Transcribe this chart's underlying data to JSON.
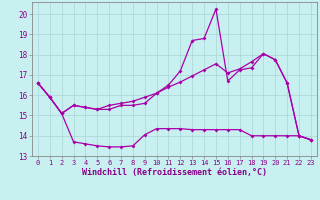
{
  "xlabel": "Windchill (Refroidissement éolien,°C)",
  "background_color": "#c8f0f0",
  "grid_color": "#b0dada",
  "line_color": "#aa00aa",
  "xlim": [
    -0.5,
    23.5
  ],
  "ylim": [
    13,
    20.6
  ],
  "yticks": [
    13,
    14,
    15,
    16,
    17,
    18,
    19,
    20
  ],
  "xticks": [
    0,
    1,
    2,
    3,
    4,
    5,
    6,
    7,
    8,
    9,
    10,
    11,
    12,
    13,
    14,
    15,
    16,
    17,
    18,
    19,
    20,
    21,
    22,
    23
  ],
  "line1_x": [
    0,
    1,
    2,
    3,
    4,
    5,
    6,
    7,
    8,
    9,
    10,
    11,
    12,
    13,
    14,
    15,
    16,
    17,
    18,
    19,
    20,
    21,
    22,
    23
  ],
  "line1_y": [
    16.6,
    15.9,
    15.1,
    13.7,
    13.6,
    13.5,
    13.45,
    13.45,
    13.5,
    14.05,
    14.35,
    14.35,
    14.35,
    14.3,
    14.3,
    14.3,
    14.3,
    14.3,
    14.0,
    14.0,
    14.0,
    14.0,
    14.0,
    13.8
  ],
  "line2_x": [
    0,
    1,
    2,
    3,
    4,
    5,
    6,
    7,
    8,
    9,
    10,
    11,
    12,
    13,
    14,
    15,
    16,
    17,
    18,
    19,
    20,
    21,
    22,
    23
  ],
  "line2_y": [
    16.6,
    15.9,
    15.1,
    15.5,
    15.4,
    15.3,
    15.3,
    15.5,
    15.5,
    15.6,
    16.1,
    16.5,
    17.2,
    18.7,
    18.8,
    20.25,
    16.7,
    17.25,
    17.35,
    18.05,
    17.75,
    16.6,
    14.0,
    13.8
  ],
  "line3_x": [
    0,
    1,
    2,
    3,
    4,
    5,
    6,
    7,
    8,
    9,
    10,
    11,
    12,
    13,
    14,
    15,
    16,
    17,
    18,
    19,
    20,
    21,
    22,
    23
  ],
  "line3_y": [
    16.6,
    15.9,
    15.1,
    15.5,
    15.4,
    15.3,
    15.5,
    15.6,
    15.7,
    15.9,
    16.1,
    16.4,
    16.65,
    16.95,
    17.25,
    17.55,
    17.1,
    17.3,
    17.65,
    18.05,
    17.75,
    16.6,
    14.0,
    13.8
  ]
}
